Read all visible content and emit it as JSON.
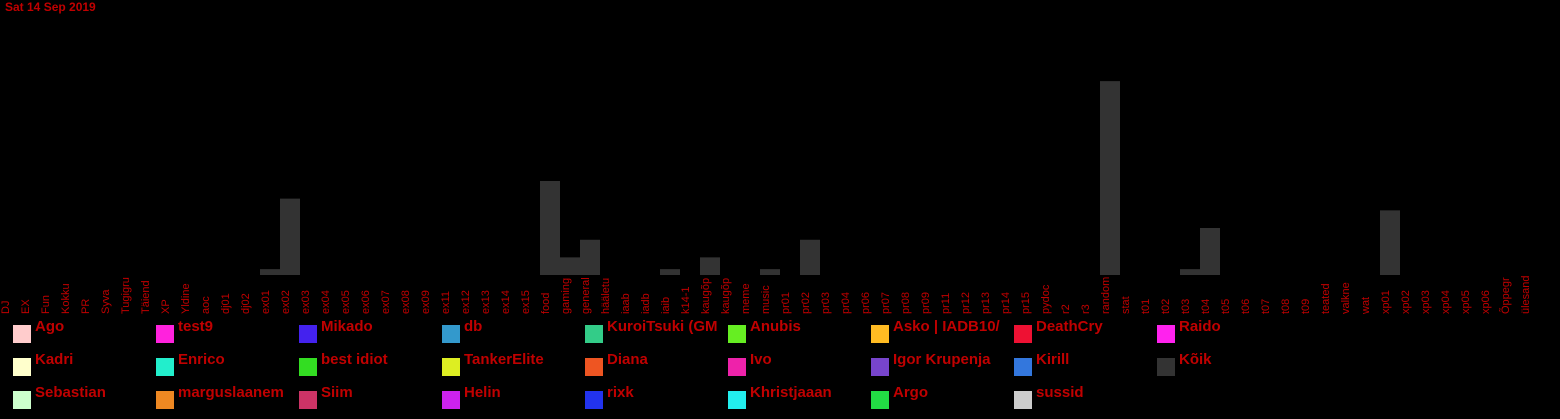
{
  "date": "Sat 14 Sep 2019",
  "chart_data": {
    "type": "bar",
    "categories": [
      "DJ",
      "EX",
      "Fun",
      "Kokku",
      "PR",
      "Syva",
      "Tugigru",
      "Täiend",
      "XP",
      "Yldine",
      "aoc",
      "dj01",
      "dj02",
      "ex01",
      "ex02",
      "ex03",
      "ex04",
      "ex05",
      "ex06",
      "ex07",
      "ex08",
      "ex09",
      "ex11",
      "ex12",
      "ex13",
      "ex14",
      "ex15",
      "food",
      "gaming",
      "general",
      "hääletu",
      "iaab",
      "iadb",
      "iaib",
      "k14-1",
      "kaugõp",
      "kaugõp",
      "meme",
      "music",
      "pr01",
      "pr02",
      "pr03",
      "pr04",
      "pr06",
      "pr07",
      "pr08",
      "pr09",
      "pr11",
      "pr12",
      "pr13",
      "pr14",
      "pr15",
      "pydoc",
      "r2",
      "r3",
      "random",
      "stat",
      "t01",
      "t02",
      "t03",
      "t04",
      "t05",
      "t06",
      "t07",
      "t08",
      "t09",
      "teated",
      "valkne",
      "wat",
      "xp01",
      "xp02",
      "xp03",
      "xp04",
      "xp05",
      "xp06",
      "Õppegr",
      "ülesand"
    ],
    "values": [
      0,
      0,
      0,
      0,
      0,
      0,
      0,
      0,
      0,
      0,
      0,
      0,
      0,
      1,
      13,
      0,
      0,
      0,
      0,
      0,
      0,
      0,
      0,
      0,
      0,
      0,
      0,
      16,
      3,
      6,
      0,
      0,
      0,
      1,
      0,
      3,
      0,
      0,
      1,
      0,
      6,
      0,
      0,
      0,
      0,
      0,
      0,
      0,
      0,
      0,
      0,
      0,
      0,
      0,
      0,
      33,
      0,
      0,
      0,
      1,
      8,
      0,
      0,
      0,
      0,
      0,
      0,
      0,
      0,
      11,
      0,
      0,
      0,
      0,
      0,
      0,
      0
    ],
    "series_color": "#333333",
    "ylim": [
      0,
      40
    ]
  },
  "legend": {
    "items": [
      {
        "label": "Ago",
        "color": "#ffcccc"
      },
      {
        "label": "test9",
        "color": "#ff22dd"
      },
      {
        "label": "Mikado",
        "color": "#4422ee"
      },
      {
        "label": "db",
        "color": "#3399cc"
      },
      {
        "label": "KuroiTsuki (GM",
        "color": "#33cc88"
      },
      {
        "label": "Anubis",
        "color": "#66ee22"
      },
      {
        "label": "Asko | IADB10/",
        "color": "#ffbb22"
      },
      {
        "label": "DeathCry",
        "color": "#ee1133"
      },
      {
        "label": "Raido",
        "color": "#ff22ee"
      },
      {
        "label": "Kadri",
        "color": "#ffffcc"
      },
      {
        "label": "Enrico",
        "color": "#22eecc"
      },
      {
        "label": "best idiot",
        "color": "#33dd22"
      },
      {
        "label": "TankerElite",
        "color": "#ddee22"
      },
      {
        "label": "Diana",
        "color": "#ee5522"
      },
      {
        "label": "Ivo",
        "color": "#ee22aa"
      },
      {
        "label": "Igor Krupenja",
        "color": "#7744cc"
      },
      {
        "label": "Kirill",
        "color": "#3377dd"
      },
      {
        "label": "Kõik",
        "color": "#333333"
      },
      {
        "label": "Sebastian",
        "color": "#ccffcc"
      },
      {
        "label": "marguslaanem",
        "color": "#ee8822"
      },
      {
        "label": "Siim",
        "color": "#cc3366"
      },
      {
        "label": "Helin",
        "color": "#cc22ee"
      },
      {
        "label": "rixk",
        "color": "#2233ee"
      },
      {
        "label": "Khristjaaan",
        "color": "#22eeee"
      },
      {
        "label": "Argo",
        "color": "#22dd44"
      },
      {
        "label": "sussid",
        "color": "#cccccc"
      }
    ]
  }
}
